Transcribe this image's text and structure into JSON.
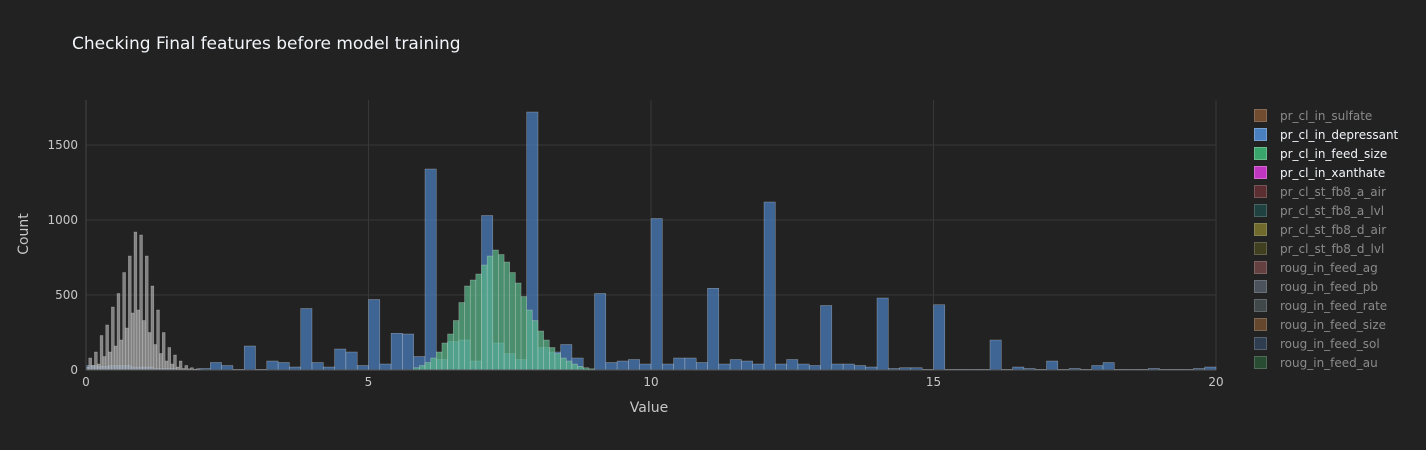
{
  "chart_data": {
    "type": "bar",
    "title": "Checking Final features before model training",
    "xlabel": "Value",
    "ylabel": "Count",
    "xlim": [
      0,
      20
    ],
    "ylim": [
      0,
      1800
    ],
    "x_ticks": [
      0,
      5,
      10,
      15,
      20
    ],
    "y_ticks": [
      0,
      500,
      1000,
      1500
    ],
    "grid": true,
    "barmode": "overlay",
    "legend_position": "right",
    "legend": [
      {
        "name": "pr_cl_in_sulfate",
        "color": "#8c5a34",
        "visible": false
      },
      {
        "name": "pr_cl_in_depressant",
        "color": "#4a7fc0",
        "visible": true
      },
      {
        "name": "pr_cl_in_feed_size",
        "color": "#3aa56a",
        "visible": true
      },
      {
        "name": "pr_cl_in_xanthate",
        "color": "#c036c0",
        "visible": true
      },
      {
        "name": "pr_cl_st_fb8_a_air",
        "color": "#6e3336",
        "visible": false
      },
      {
        "name": "pr_cl_st_fb8_a_lvl",
        "color": "#1f4d4a",
        "visible": false
      },
      {
        "name": "pr_cl_st_fb8_d_air",
        "color": "#8a8330",
        "visible": false
      },
      {
        "name": "pr_cl_st_fb8_d_lvl",
        "color": "#4a4a20",
        "visible": false
      },
      {
        "name": "roug_in_feed_ag",
        "color": "#7a4a4a",
        "visible": false
      },
      {
        "name": "roug_in_feed_pb",
        "color": "#5a6470",
        "visible": false
      },
      {
        "name": "roug_in_feed_rate",
        "color": "#4a5558",
        "visible": false
      },
      {
        "name": "roug_in_feed_size",
        "color": "#7a5430",
        "visible": false
      },
      {
        "name": "roug_in_feed_sol",
        "color": "#344660",
        "visible": false
      },
      {
        "name": "roug_in_feed_au",
        "color": "#2a5a36",
        "visible": false
      }
    ],
    "series": [
      {
        "name": "pr_cl_in_depressant",
        "color": "#4a7fc0",
        "bin_width": 0.2,
        "x": [
          0.1,
          0.3,
          0.5,
          0.7,
          0.9,
          1.1,
          1.3,
          1.5,
          1.7,
          1.9,
          2.1,
          2.3,
          2.5,
          2.7,
          2.9,
          3.1,
          3.3,
          3.5,
          3.7,
          3.9,
          4.1,
          4.3,
          4.5,
          4.7,
          4.9,
          5.1,
          5.3,
          5.5,
          5.7,
          5.9,
          6.1,
          6.3,
          6.5,
          6.7,
          6.9,
          7.1,
          7.3,
          7.5,
          7.7,
          7.9,
          8.1,
          8.3,
          8.5,
          8.7,
          8.9,
          9.1,
          9.3,
          9.5,
          9.7,
          9.9,
          10.1,
          10.3,
          10.5,
          10.7,
          10.9,
          11.1,
          11.3,
          11.5,
          11.7,
          11.9,
          12.1,
          12.3,
          12.5,
          12.7,
          12.9,
          13.1,
          13.3,
          13.5,
          13.7,
          13.9,
          14.1,
          14.3,
          14.5,
          14.7,
          14.9,
          15.1,
          15.3,
          15.5,
          15.7,
          15.9,
          16.1,
          16.3,
          16.5,
          16.7,
          16.9,
          17.1,
          17.3,
          17.5,
          17.7,
          17.9,
          18.1,
          18.3,
          18.5,
          18.7,
          18.9,
          19.1,
          19.3,
          19.5,
          19.7,
          19.9
        ],
        "values": [
          30,
          25,
          30,
          30,
          20,
          20,
          10,
          10,
          5,
          5,
          10,
          50,
          30,
          5,
          160,
          5,
          60,
          50,
          20,
          410,
          50,
          20,
          140,
          120,
          30,
          470,
          40,
          245,
          240,
          90,
          1340,
          70,
          190,
          200,
          60,
          1030,
          180,
          110,
          70,
          1720,
          150,
          120,
          170,
          80,
          5,
          510,
          50,
          60,
          70,
          40,
          1010,
          40,
          80,
          80,
          50,
          545,
          40,
          70,
          60,
          40,
          1120,
          40,
          70,
          40,
          30,
          430,
          40,
          40,
          30,
          20,
          480,
          10,
          15,
          15,
          5,
          435,
          5,
          5,
          5,
          5,
          200,
          5,
          20,
          10,
          5,
          60,
          5,
          10,
          5,
          30,
          50,
          5,
          5,
          5,
          10,
          5,
          5,
          5,
          10,
          20
        ]
      },
      {
        "name": "pr_cl_in_feed_size",
        "color": "#5ab88a",
        "bin_width": 0.1,
        "x": [
          5.85,
          5.95,
          6.05,
          6.15,
          6.25,
          6.35,
          6.45,
          6.55,
          6.65,
          6.75,
          6.85,
          6.95,
          7.05,
          7.15,
          7.25,
          7.35,
          7.45,
          7.55,
          7.65,
          7.75,
          7.85,
          7.95,
          8.05,
          8.15,
          8.25,
          8.35,
          8.45,
          8.55,
          8.65,
          8.75,
          8.85,
          8.95
        ],
        "values": [
          15,
          30,
          50,
          80,
          120,
          180,
          240,
          330,
          450,
          560,
          600,
          640,
          700,
          760,
          800,
          770,
          720,
          650,
          580,
          490,
          400,
          330,
          260,
          200,
          150,
          110,
          80,
          60,
          40,
          25,
          15,
          8
        ]
      },
      {
        "name": "pr_cl_in_xanthate",
        "color": "#a8a8a8",
        "bin_width": 0.05,
        "x": [
          0.025,
          0.075,
          0.125,
          0.175,
          0.225,
          0.275,
          0.325,
          0.375,
          0.425,
          0.475,
          0.525,
          0.575,
          0.625,
          0.675,
          0.725,
          0.775,
          0.825,
          0.875,
          0.925,
          0.975,
          1.025,
          1.075,
          1.125,
          1.175,
          1.225,
          1.275,
          1.325,
          1.375,
          1.425,
          1.475,
          1.525,
          1.575,
          1.625,
          1.675,
          1.725,
          1.775,
          1.825,
          1.875,
          1.925,
          1.975,
          2.025,
          2.075,
          2.125
        ],
        "values": [
          20,
          80,
          30,
          120,
          40,
          230,
          90,
          300,
          120,
          420,
          160,
          510,
          200,
          650,
          280,
          760,
          380,
          920,
          400,
          900,
          330,
          760,
          250,
          560,
          170,
          400,
          110,
          250,
          60,
          150,
          40,
          100,
          20,
          60,
          10,
          30,
          8,
          15,
          5,
          8,
          3,
          2,
          1
        ]
      }
    ]
  }
}
